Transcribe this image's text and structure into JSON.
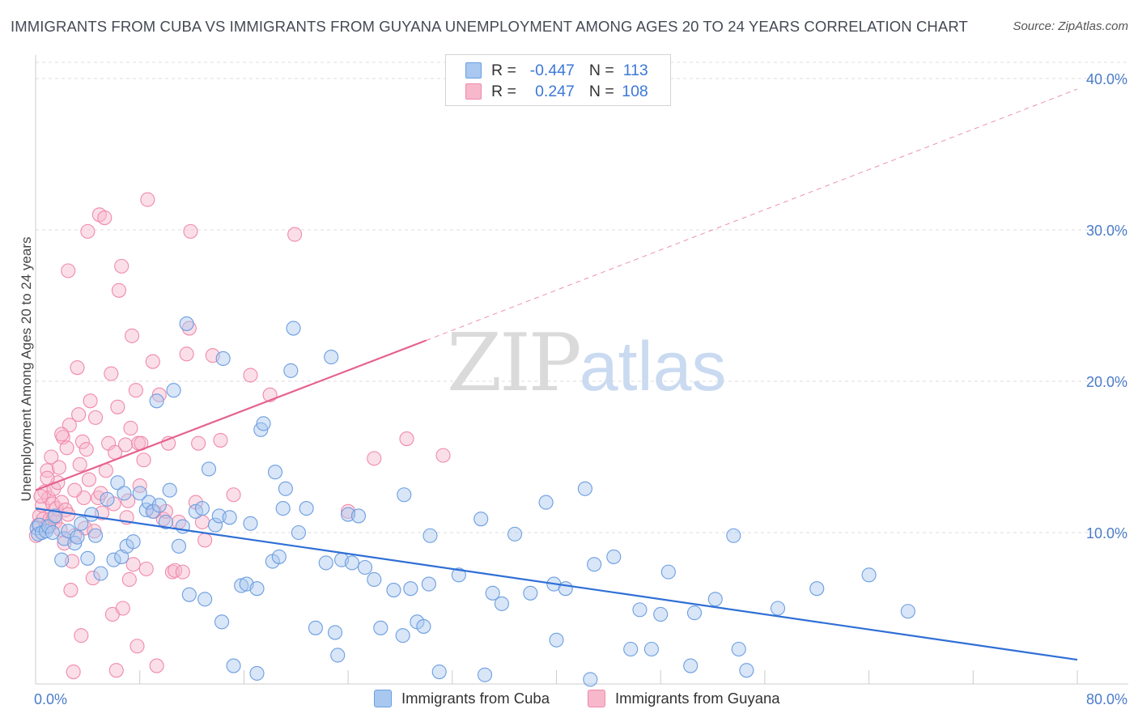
{
  "title": "IMMIGRANTS FROM CUBA VS IMMIGRANTS FROM GUYANA UNEMPLOYMENT AMONG AGES 20 TO 24 YEARS CORRELATION CHART",
  "source": "Source: ZipAtlas.com",
  "watermark": {
    "zip": "ZIP",
    "atlas": "atlas"
  },
  "legend": {
    "r_label": "R =",
    "n_label": "N =",
    "cuba": {
      "r": "-0.447",
      "n": "113"
    },
    "guyana": {
      "r": "0.247",
      "n": "108"
    }
  },
  "colors": {
    "cuba_fill": "#a8c8f0",
    "cuba_stroke": "#6d9ee0",
    "cuba_line": "#2f6fd6",
    "guyana_fill": "#f7b8cb",
    "guyana_stroke": "#f08aab",
    "guyana_line": "#e56291",
    "axis_label": "#4a7cc9"
  },
  "chart_data": {
    "type": "scatter",
    "title": "IMMIGRANTS FROM CUBA VS IMMIGRANTS FROM GUYANA UNEMPLOYMENT AMONG AGES 20 TO 24 YEARS CORRELATION CHART",
    "xlabel": "",
    "ylabel": "Unemployment Among Ages 20 to 24 years",
    "xlim": [
      0,
      80
    ],
    "ylim": [
      0,
      40
    ],
    "x_tick_labels": [
      "0.0%",
      "80.0%"
    ],
    "y_ticks": [
      10,
      20,
      30,
      40
    ],
    "y_tick_labels": [
      "10.0%",
      "20.0%",
      "30.0%",
      "40.0%"
    ],
    "grid": true,
    "legend_position": "top-center",
    "series": [
      {
        "name": "Immigrants from Cuba",
        "trend": {
          "x": [
            0,
            80
          ],
          "y": [
            11.6,
            1.6
          ],
          "style": "solid"
        },
        "points": [
          [
            0.1,
            10.3
          ],
          [
            0.2,
            9.9
          ],
          [
            0.3,
            10.5
          ],
          [
            0.5,
            10.0
          ],
          [
            0.8,
            10.1
          ],
          [
            1.0,
            10.4
          ],
          [
            1.3,
            10.0
          ],
          [
            1.5,
            11.1
          ],
          [
            2.0,
            8.2
          ],
          [
            2.2,
            9.6
          ],
          [
            2.5,
            10.1
          ],
          [
            3.0,
            9.3
          ],
          [
            3.2,
            9.7
          ],
          [
            3.5,
            10.6
          ],
          [
            4.0,
            8.3
          ],
          [
            4.3,
            11.2
          ],
          [
            4.6,
            9.8
          ],
          [
            5.0,
            7.3
          ],
          [
            5.5,
            12.2
          ],
          [
            6.0,
            8.2
          ],
          [
            6.3,
            13.3
          ],
          [
            6.6,
            8.4
          ],
          [
            6.8,
            12.6
          ],
          [
            7.0,
            9.1
          ],
          [
            7.5,
            9.4
          ],
          [
            8.0,
            12.6
          ],
          [
            8.5,
            11.5
          ],
          [
            8.7,
            12.0
          ],
          [
            9.0,
            11.4
          ],
          [
            9.3,
            18.7
          ],
          [
            9.5,
            11.8
          ],
          [
            10.0,
            10.7
          ],
          [
            10.3,
            12.8
          ],
          [
            10.6,
            19.4
          ],
          [
            11.0,
            9.1
          ],
          [
            11.3,
            10.4
          ],
          [
            11.6,
            23.8
          ],
          [
            11.8,
            5.9
          ],
          [
            12.3,
            11.4
          ],
          [
            12.8,
            11.6
          ],
          [
            13.0,
            5.6
          ],
          [
            13.3,
            14.2
          ],
          [
            13.8,
            10.5
          ],
          [
            14.1,
            11.1
          ],
          [
            14.3,
            4.1
          ],
          [
            14.4,
            21.5
          ],
          [
            14.9,
            11.0
          ],
          [
            15.2,
            1.2
          ],
          [
            15.8,
            6.5
          ],
          [
            16.2,
            6.6
          ],
          [
            16.5,
            10.6
          ],
          [
            17.0,
            0.7
          ],
          [
            17.0,
            6.3
          ],
          [
            17.3,
            16.8
          ],
          [
            17.5,
            17.2
          ],
          [
            18.2,
            8.1
          ],
          [
            18.4,
            14.0
          ],
          [
            18.7,
            8.4
          ],
          [
            19.0,
            11.6
          ],
          [
            19.2,
            12.9
          ],
          [
            19.6,
            20.7
          ],
          [
            19.8,
            23.5
          ],
          [
            20.2,
            10.0
          ],
          [
            20.8,
            11.6
          ],
          [
            21.5,
            3.7
          ],
          [
            22.3,
            8.0
          ],
          [
            22.7,
            21.6
          ],
          [
            23.0,
            3.4
          ],
          [
            23.2,
            1.9
          ],
          [
            23.5,
            8.2
          ],
          [
            24.0,
            11.2
          ],
          [
            24.3,
            8.0
          ],
          [
            24.8,
            11.1
          ],
          [
            25.3,
            7.7
          ],
          [
            26.0,
            6.9
          ],
          [
            26.5,
            3.7
          ],
          [
            27.5,
            6.2
          ],
          [
            28.2,
            3.2
          ],
          [
            28.3,
            12.5
          ],
          [
            28.8,
            6.3
          ],
          [
            29.3,
            4.1
          ],
          [
            29.8,
            3.8
          ],
          [
            30.2,
            6.6
          ],
          [
            30.3,
            9.8
          ],
          [
            31.0,
            0.8
          ],
          [
            32.5,
            7.2
          ],
          [
            34.2,
            10.9
          ],
          [
            34.5,
            0.6
          ],
          [
            35.1,
            6.0
          ],
          [
            35.8,
            5.3
          ],
          [
            36.8,
            9.9
          ],
          [
            38.0,
            6.0
          ],
          [
            39.2,
            12.0
          ],
          [
            39.8,
            6.6
          ],
          [
            40.0,
            2.9
          ],
          [
            40.7,
            6.3
          ],
          [
            42.2,
            12.9
          ],
          [
            42.6,
            0.3
          ],
          [
            42.9,
            7.9
          ],
          [
            44.4,
            8.4
          ],
          [
            45.7,
            2.3
          ],
          [
            46.4,
            4.9
          ],
          [
            47.3,
            2.3
          ],
          [
            48.0,
            4.6
          ],
          [
            48.6,
            7.4
          ],
          [
            50.3,
            1.2
          ],
          [
            50.6,
            4.7
          ],
          [
            52.2,
            5.6
          ],
          [
            53.6,
            9.8
          ],
          [
            54.0,
            2.3
          ],
          [
            54.6,
            0.9
          ],
          [
            57.0,
            5.0
          ],
          [
            60.0,
            6.3
          ],
          [
            64.0,
            7.2
          ],
          [
            67.0,
            4.8
          ]
        ]
      },
      {
        "name": "Immigrants from Guyana",
        "trend": {
          "x": [
            0,
            30
          ],
          "y": [
            12.8,
            22.7
          ],
          "style": "solid",
          "extension": {
            "x": [
              30,
              80
            ],
            "y": [
              22.7,
              39.3
            ],
            "style": "dashed"
          }
        },
        "points": [
          [
            0.05,
            9.8
          ],
          [
            0.2,
            10.5
          ],
          [
            0.3,
            11.1
          ],
          [
            0.5,
            11.8
          ],
          [
            0.6,
            10.9
          ],
          [
            0.7,
            12.7
          ],
          [
            0.8,
            10.4
          ],
          [
            0.9,
            14.1
          ],
          [
            1.0,
            12.3
          ],
          [
            1.1,
            10.9
          ],
          [
            1.2,
            15.0
          ],
          [
            1.3,
            11.9
          ],
          [
            1.4,
            12.9
          ],
          [
            1.5,
            10.7
          ],
          [
            1.6,
            11.6
          ],
          [
            1.7,
            13.3
          ],
          [
            1.8,
            14.3
          ],
          [
            1.9,
            10.2
          ],
          [
            2.0,
            12.0
          ],
          [
            2.1,
            16.3
          ],
          [
            2.2,
            9.3
          ],
          [
            2.3,
            11.5
          ],
          [
            2.4,
            15.6
          ],
          [
            2.5,
            11.2
          ],
          [
            2.5,
            27.3
          ],
          [
            2.6,
            17.1
          ],
          [
            2.7,
            6.2
          ],
          [
            2.8,
            8.1
          ],
          [
            2.9,
            0.8
          ],
          [
            3.0,
            9.8
          ],
          [
            3.2,
            20.9
          ],
          [
            3.3,
            17.8
          ],
          [
            3.4,
            14.5
          ],
          [
            3.5,
            3.2
          ],
          [
            3.6,
            16.0
          ],
          [
            3.7,
            12.3
          ],
          [
            3.8,
            10.3
          ],
          [
            3.9,
            15.5
          ],
          [
            4.0,
            29.9
          ],
          [
            4.1,
            13.5
          ],
          [
            4.2,
            18.7
          ],
          [
            4.4,
            7.0
          ],
          [
            4.6,
            17.6
          ],
          [
            4.8,
            12.3
          ],
          [
            4.9,
            31.0
          ],
          [
            5.0,
            12.6
          ],
          [
            5.1,
            11.3
          ],
          [
            5.3,
            30.8
          ],
          [
            5.4,
            14.1
          ],
          [
            5.6,
            15.9
          ],
          [
            5.8,
            20.5
          ],
          [
            5.9,
            4.6
          ],
          [
            6.1,
            15.3
          ],
          [
            6.2,
            0.9
          ],
          [
            6.3,
            18.3
          ],
          [
            6.4,
            26.0
          ],
          [
            6.6,
            27.6
          ],
          [
            6.7,
            5.0
          ],
          [
            6.9,
            15.8
          ],
          [
            7.0,
            11.0
          ],
          [
            7.1,
            12.1
          ],
          [
            7.3,
            16.9
          ],
          [
            7.4,
            23.0
          ],
          [
            7.5,
            7.9
          ],
          [
            7.7,
            19.4
          ],
          [
            7.8,
            2.5
          ],
          [
            7.9,
            15.9
          ],
          [
            8.0,
            13.1
          ],
          [
            8.1,
            15.9
          ],
          [
            8.3,
            14.8
          ],
          [
            8.5,
            7.6
          ],
          [
            8.6,
            32.0
          ],
          [
            9.0,
            21.3
          ],
          [
            9.3,
            1.2
          ],
          [
            9.5,
            19.1
          ],
          [
            9.8,
            10.9
          ],
          [
            10.0,
            11.4
          ],
          [
            10.2,
            15.9
          ],
          [
            10.5,
            7.4
          ],
          [
            10.7,
            7.5
          ],
          [
            11.0,
            10.7
          ],
          [
            11.3,
            7.4
          ],
          [
            11.6,
            21.8
          ],
          [
            11.8,
            23.5
          ],
          [
            11.9,
            29.9
          ],
          [
            12.3,
            12.0
          ],
          [
            12.5,
            15.9
          ],
          [
            12.8,
            10.7
          ],
          [
            13.0,
            9.5
          ],
          [
            13.6,
            21.7
          ],
          [
            14.2,
            16.1
          ],
          [
            15.2,
            12.5
          ],
          [
            16.5,
            20.4
          ],
          [
            18.0,
            19.1
          ],
          [
            19.9,
            29.7
          ],
          [
            24.0,
            11.4
          ],
          [
            26.0,
            14.9
          ],
          [
            28.5,
            16.2
          ],
          [
            31.3,
            15.1
          ],
          [
            0.4,
            12.4
          ],
          [
            0.9,
            13.6
          ],
          [
            1.4,
            11.0
          ],
          [
            2.0,
            16.5
          ],
          [
            3.0,
            12.8
          ],
          [
            4.5,
            10.1
          ],
          [
            6.0,
            11.9
          ],
          [
            7.2,
            6.9
          ],
          [
            9.1,
            11.4
          ]
        ]
      }
    ]
  }
}
